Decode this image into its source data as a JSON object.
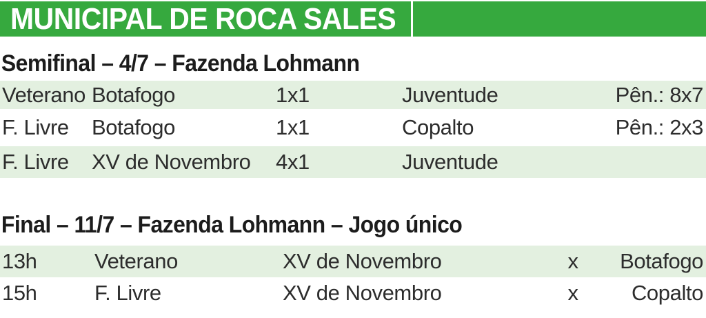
{
  "header": {
    "title": "MUNICIPAL DE ROCA SALES"
  },
  "colors": {
    "masthead_green": "#36a93e",
    "row_shade_green": "#e3f0e0",
    "text_dark": "#2d2d2d",
    "title_white": "#ffffff"
  },
  "sections": [
    {
      "heading": "Semifinal – 4/7 – Fazenda Lohmann",
      "rows": [
        {
          "category": "Veterano",
          "home": "Botafogo",
          "score": "1x1",
          "away": "Juventude",
          "note": "Pên.: 8x7"
        },
        {
          "category": "F. Livre",
          "home": "Botafogo",
          "score": "1x1",
          "away": "Copalto",
          "note": "Pên.: 2x3"
        },
        {
          "category": "F. Livre",
          "home": "XV de Novembro",
          "score": "4x1",
          "away": "Juventude",
          "note": ""
        }
      ]
    },
    {
      "heading": "Final – 11/7 – Fazenda Lohmann – Jogo único",
      "rows": [
        {
          "time": "13h",
          "category": "Veterano",
          "home": "XV de Novembro",
          "separator": "x",
          "away": "Botafogo"
        },
        {
          "time": "15h",
          "category": "F. Livre",
          "home": "XV de Novembro",
          "separator": "x",
          "away": "Copalto"
        }
      ]
    }
  ]
}
